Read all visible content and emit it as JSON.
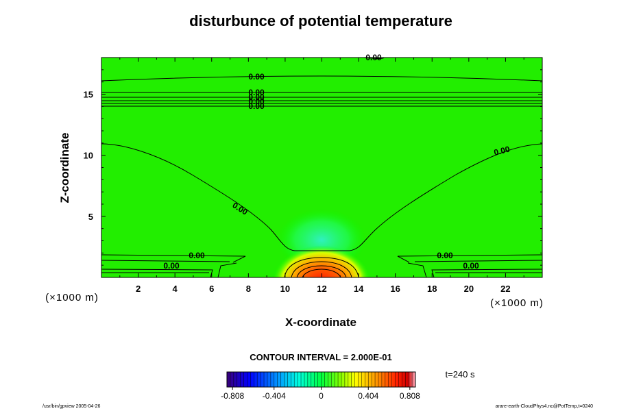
{
  "chart_data": {
    "type": "heatmap",
    "title": "disturbunce of potential temperature",
    "xlabel": "X-coordinate",
    "ylabel": "Z-coordinate",
    "x_unit": "(×1000 m)",
    "y_unit": "(×1000 m)",
    "xlim": [
      0,
      24
    ],
    "ylim": [
      0,
      18
    ],
    "x_ticks": [
      "2",
      "4",
      "6",
      "8",
      "10",
      "12",
      "14",
      "16",
      "18",
      "20",
      "22"
    ],
    "y_ticks": [
      "5",
      "10",
      "15"
    ],
    "contour_interval_label": "CONTOUR INTERVAL = 2.000E-01",
    "time_label": "t=240 s",
    "colorbar": {
      "min": -0.808,
      "max": 0.808,
      "tick_labels": [
        "-0.808",
        "-0.404",
        "0",
        "0.404",
        "0.808"
      ],
      "colors": [
        "#3a007a",
        "#0000ff",
        "#00a0ff",
        "#00ffe0",
        "#00ff40",
        "#80ff00",
        "#ffff00",
        "#ff9000",
        "#ff2000",
        "#d00000",
        "#ffb0c0"
      ]
    },
    "contour_labels": [
      "0.00",
      "0.00",
      "0.00",
      "0.00",
      "0.00",
      "0.00",
      "0.00",
      "0.00",
      "0.00",
      "0.00",
      "0.00",
      "0.00"
    ],
    "warm_anomaly": {
      "x_center": 12,
      "z_center": 0.4,
      "peak_value": 0.808
    },
    "cool_anomaly": {
      "x_center": 12,
      "z_center": 2.8,
      "value": -0.2
    },
    "background_value": 0
  },
  "footer": {
    "left": "/usr/bin/gpview 2005-04-26",
    "right": "arare-earth-CloudPhys4.nc@PotTemp,t=0240"
  }
}
